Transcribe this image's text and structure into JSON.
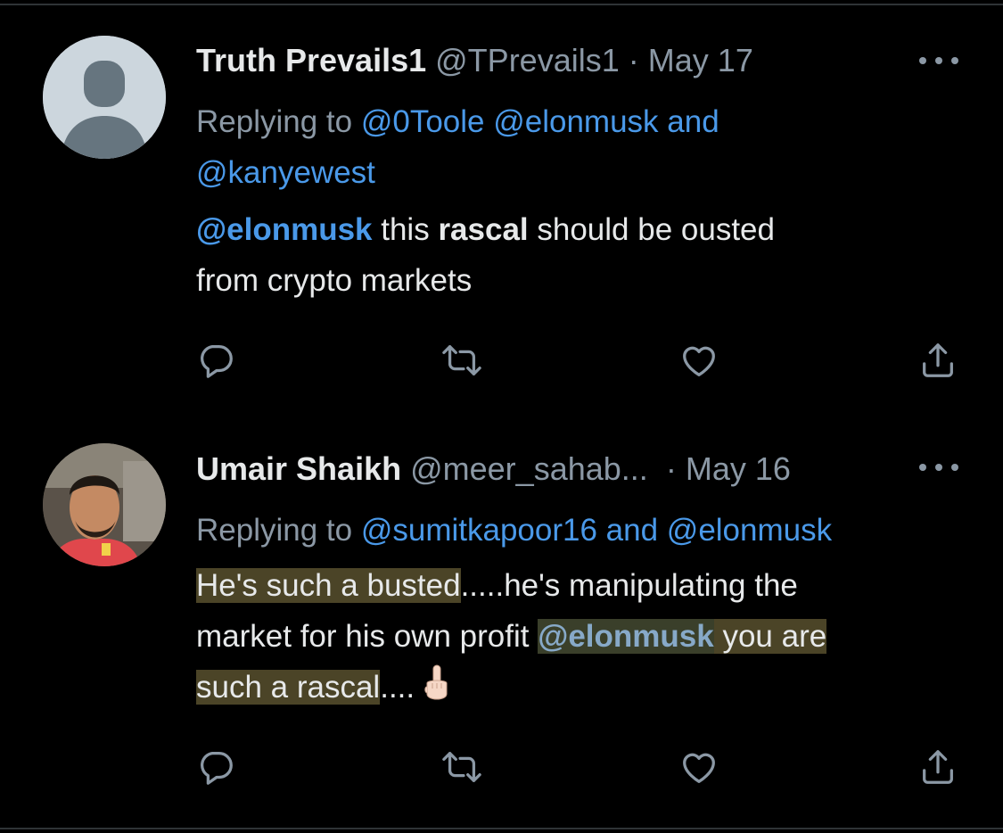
{
  "tweets": [
    {
      "name": "Truth Prevails1",
      "handle": "@TPrevails1",
      "dot": "·",
      "date": "May 17",
      "replying_prefix": "Replying to",
      "replying_mentions": "@0Toole @elonmusk and",
      "replying_mentions_2": "@kanyewest",
      "body": {
        "mention": "@elonmusk",
        "t1": " this ",
        "bold": "rascal",
        "t2": " should be ousted",
        "t3": "from crypto markets"
      }
    },
    {
      "name": "Umair Shaikh",
      "handle": "@meer_sahab...",
      "dot": "·",
      "date": "May 16",
      "replying_prefix": "Replying to",
      "replying_mentions": "@sumitkapoor16 and @elonmusk",
      "body": {
        "hl1": "He's such a busted",
        "t1": ".....he's manipulating the",
        "t2": "market for his own profit ",
        "mention": "@elonmusk",
        "hl2": " you are",
        "hl3": "such a rascal",
        "t3": ".... "
      }
    }
  ],
  "icons": {
    "more": "more-horizontal-icon",
    "reply": "reply-bubble-icon",
    "retweet": "retweet-icon",
    "like": "heart-icon",
    "share": "share-icon",
    "emoji": "middle-finger-emoji-icon"
  },
  "colors": {
    "background": "#000000",
    "text": "#e7e9ea",
    "secondary": "#8b98a5",
    "mention": "#4a99e9",
    "highlight": "#4b4427"
  }
}
